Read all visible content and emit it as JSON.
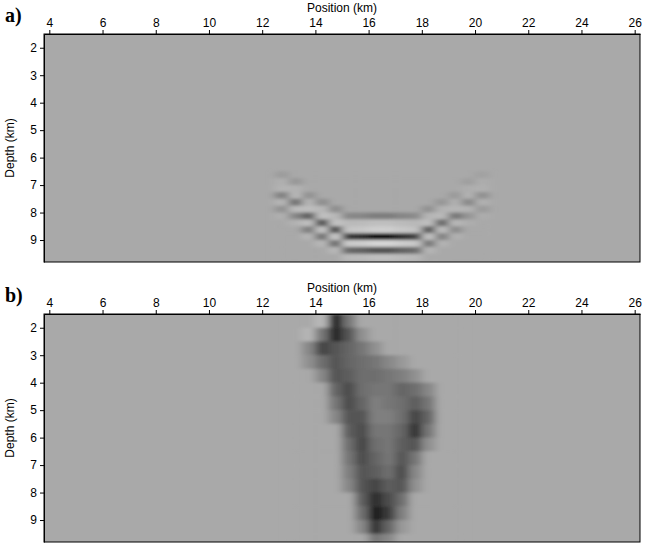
{
  "chart_data": [
    {
      "type": "heatmap",
      "title": "a)",
      "xlabel": "Position (km)",
      "ylabel": "Depth (km)",
      "xlim": [
        3.8,
        26.2
      ],
      "ylim": [
        1.5,
        9.8
      ],
      "xticks": [
        4,
        6,
        8,
        10,
        12,
        14,
        16,
        18,
        20,
        22,
        24,
        26
      ],
      "yticks": [
        2,
        3,
        4,
        5,
        6,
        7,
        8,
        9
      ],
      "zlim": [
        -1,
        1
      ],
      "x_edges": [
        12.5,
        13,
        13.5,
        14,
        14.5,
        15,
        15.5,
        16,
        16.5,
        17,
        17.5,
        18,
        18.5,
        19,
        19.5,
        20,
        20.5
      ],
      "y_edges": [
        6.5,
        6.75,
        7,
        7.25,
        7.5,
        7.75,
        8,
        8.25,
        8.5,
        8.75,
        9,
        9.25,
        9.5,
        9.75
      ],
      "cells": [
        [
          -0.08,
          0,
          0,
          0,
          0,
          0,
          0,
          0,
          0,
          0,
          0,
          0,
          0,
          0,
          0,
          -0.05
        ],
        [
          0.08,
          -0.11,
          0,
          0,
          0,
          0,
          0,
          0,
          0,
          0,
          0,
          0,
          0,
          0,
          -0.06,
          0.05
        ],
        [
          0.13,
          0.11,
          0,
          0,
          0,
          0,
          0,
          0,
          0,
          0,
          0,
          0,
          0,
          0,
          0.06,
          0.08
        ],
        [
          -0.25,
          0.18,
          -0.14,
          0,
          0,
          0,
          0,
          0,
          0,
          0,
          0,
          0,
          0,
          -0.09,
          0.1,
          -0.15
        ],
        [
          0.15,
          -0.35,
          0.14,
          -0.17,
          0,
          0,
          0,
          0,
          0,
          0,
          0,
          0,
          -0.12,
          0.09,
          -0.2,
          0.09
        ],
        [
          -0.15,
          0.21,
          0.23,
          0.17,
          -0.18,
          0,
          0,
          0,
          0,
          0,
          0,
          -0.15,
          0.12,
          0.15,
          0.12,
          -0.09
        ],
        [
          0.08,
          -0.21,
          -0.45,
          0.28,
          0.18,
          -0.2,
          -0.21,
          -0.26,
          -0.26,
          -0.21,
          -0.18,
          0.15,
          0.2,
          -0.3,
          -0.12,
          0.05
        ],
        [
          0,
          0.11,
          0.27,
          -0.55,
          0.3,
          0.2,
          0.21,
          0.26,
          0.26,
          0.21,
          0.18,
          0.25,
          -0.4,
          0.18,
          0.06,
          0
        ],
        [
          0,
          0,
          -0.27,
          0.33,
          -0.6,
          0.33,
          0.35,
          0.43,
          0.43,
          0.35,
          0.3,
          -0.5,
          0.24,
          -0.18,
          0,
          0
        ],
        [
          0,
          0,
          0.14,
          -0.33,
          0.36,
          -0.65,
          -0.7,
          -0.85,
          -0.85,
          -0.7,
          -0.6,
          0.3,
          -0.24,
          0.09,
          0,
          0
        ],
        [
          0,
          0,
          0,
          0.17,
          -0.36,
          0.39,
          0.42,
          0.51,
          0.51,
          0.42,
          0.36,
          -0.3,
          0.12,
          0,
          0,
          0
        ],
        [
          0,
          0,
          0,
          0,
          0.18,
          -0.39,
          -0.42,
          -0.51,
          -0.51,
          -0.42,
          -0.36,
          0.15,
          0,
          0,
          0,
          0
        ],
        [
          0,
          0,
          0,
          0,
          0,
          0.2,
          0.21,
          0.26,
          0.26,
          0.21,
          0.18,
          0,
          0,
          0,
          0,
          0
        ]
      ]
    },
    {
      "type": "heatmap",
      "title": "b)",
      "xlabel": "Position (km)",
      "ylabel": "Depth (km)",
      "xlim": [
        3.8,
        26.2
      ],
      "ylim": [
        1.5,
        9.8
      ],
      "xticks": [
        4,
        6,
        8,
        10,
        12,
        14,
        16,
        18,
        20,
        22,
        24,
        26
      ],
      "yticks": [
        2,
        3,
        4,
        5,
        6,
        7,
        8,
        9
      ],
      "zlim": [
        -1,
        1
      ],
      "x_edges": [
        13,
        13.5,
        14,
        14.5,
        15,
        15.5,
        16,
        16.5,
        17,
        17.5,
        18,
        18.5,
        19,
        19.5
      ],
      "y_edges": [
        1.5,
        2,
        2.5,
        3,
        3.5,
        4,
        4.5,
        5,
        5.5,
        6,
        6.5,
        7,
        7.5,
        8,
        8.5,
        9,
        9.5,
        9.8
      ],
      "cells": [
        [
          0,
          0,
          0.2,
          -0.9,
          -0.3,
          0,
          0,
          0,
          0,
          0,
          0,
          0,
          0
        ],
        [
          0,
          0.15,
          -0.3,
          -0.8,
          -0.5,
          -0.15,
          0,
          0,
          0,
          0,
          0,
          0,
          0
        ],
        [
          0,
          -0.2,
          -0.6,
          -0.5,
          -0.4,
          -0.3,
          -0.15,
          0,
          0,
          0,
          0,
          0,
          0
        ],
        [
          0,
          -0.15,
          -0.35,
          -0.5,
          -0.4,
          -0.35,
          -0.3,
          -0.2,
          -0.1,
          0,
          0,
          0,
          0
        ],
        [
          0,
          0,
          -0.2,
          -0.5,
          -0.45,
          -0.35,
          -0.35,
          -0.3,
          -0.25,
          -0.15,
          0,
          0,
          0
        ],
        [
          0,
          0,
          0,
          -0.4,
          -0.55,
          -0.35,
          -0.3,
          -0.3,
          -0.4,
          -0.35,
          -0.2,
          0,
          0
        ],
        [
          0,
          0,
          0,
          -0.3,
          -0.55,
          -0.4,
          -0.25,
          -0.3,
          -0.35,
          -0.45,
          -0.3,
          0,
          0
        ],
        [
          0,
          0,
          0,
          -0.2,
          -0.5,
          -0.5,
          -0.25,
          -0.25,
          -0.35,
          -0.6,
          -0.4,
          0,
          0
        ],
        [
          0,
          0,
          0,
          0,
          -0.45,
          -0.55,
          -0.3,
          -0.3,
          -0.4,
          -0.7,
          -0.3,
          0,
          0
        ],
        [
          0,
          0,
          0,
          0,
          -0.35,
          -0.6,
          -0.35,
          -0.3,
          -0.45,
          -0.5,
          -0.15,
          0,
          0
        ],
        [
          0,
          0,
          0,
          0,
          -0.3,
          -0.55,
          -0.4,
          -0.3,
          -0.5,
          -0.3,
          0,
          0,
          0
        ],
        [
          0,
          0,
          0,
          0,
          -0.25,
          -0.5,
          -0.45,
          -0.35,
          -0.55,
          -0.2,
          0,
          0,
          0
        ],
        [
          0,
          0,
          0,
          0,
          -0.2,
          -0.5,
          -0.6,
          -0.45,
          -0.5,
          -0.15,
          0,
          0,
          0
        ],
        [
          0,
          0,
          0,
          0,
          0,
          -0.45,
          -0.75,
          -0.55,
          -0.35,
          0,
          0,
          0,
          0
        ],
        [
          0,
          0,
          0,
          0,
          0,
          -0.35,
          -0.85,
          -0.65,
          -0.25,
          0,
          0,
          0,
          0
        ],
        [
          0,
          0,
          0,
          0,
          0,
          -0.2,
          -0.7,
          -0.4,
          -0.1,
          0,
          0,
          0,
          0
        ],
        [
          0,
          0,
          0,
          0,
          0,
          0,
          -0.3,
          -0.2,
          0,
          0,
          0,
          0,
          0
        ]
      ]
    }
  ]
}
